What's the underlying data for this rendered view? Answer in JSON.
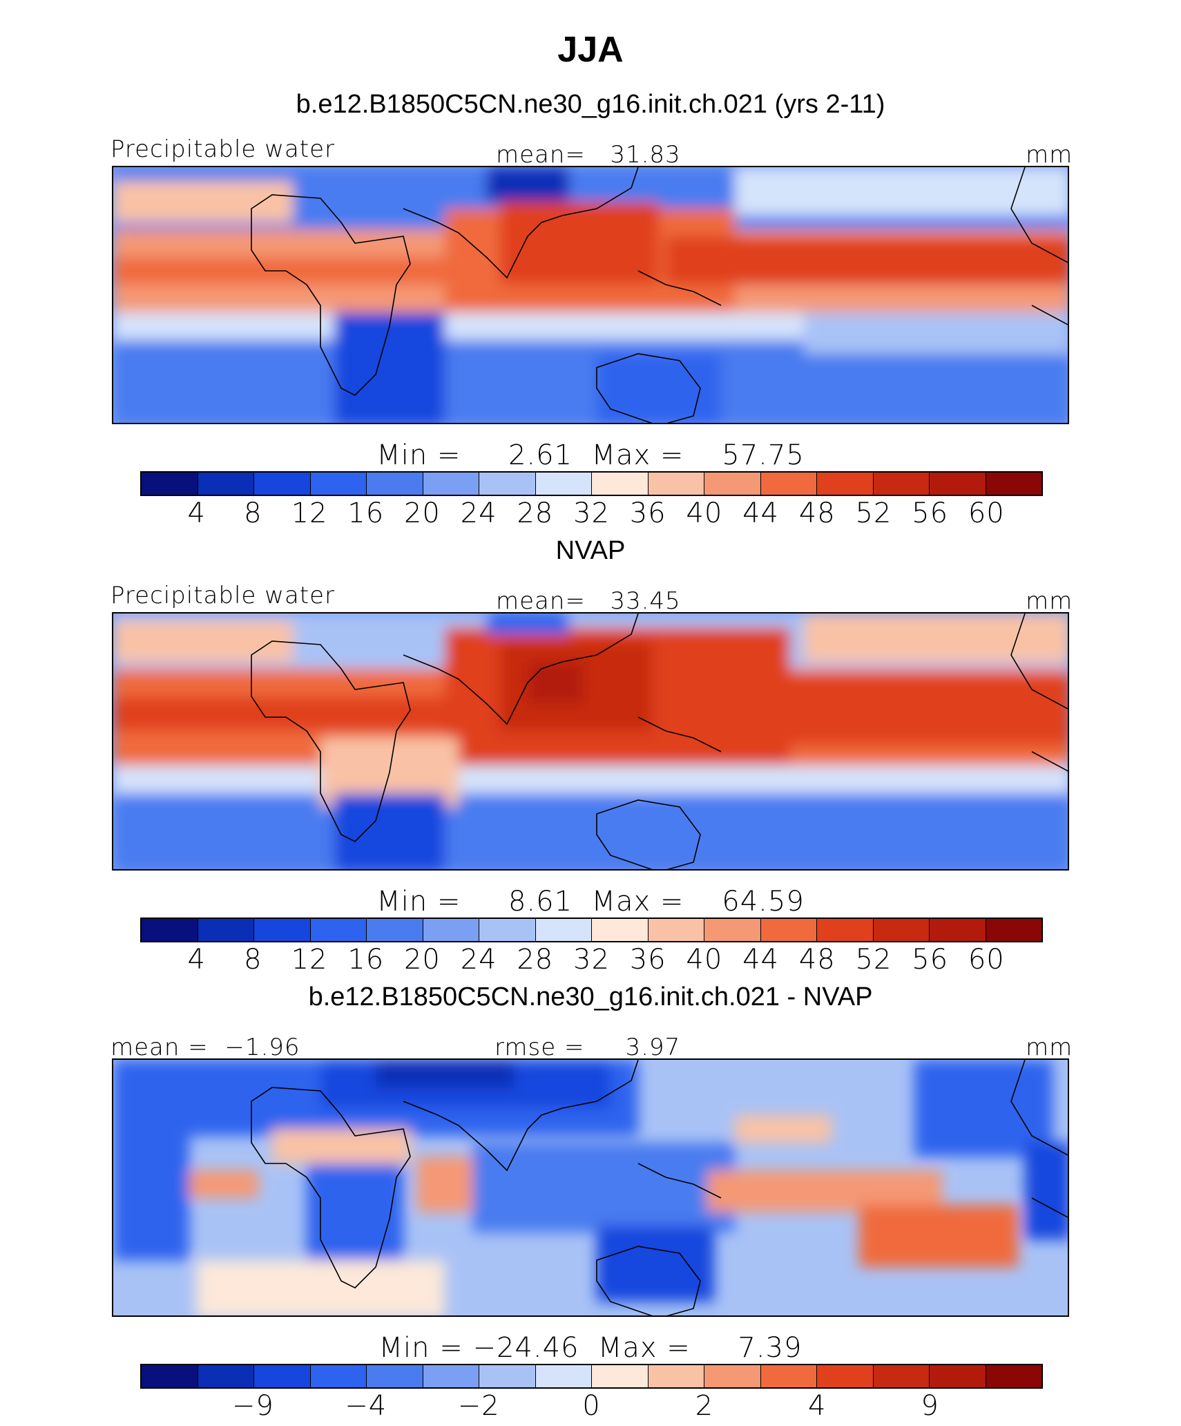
{
  "title": "JJA",
  "palette": [
    "#08107e",
    "#0a2fb6",
    "#1646de",
    "#2d63ee",
    "#4a7cf0",
    "#7b9ff2",
    "#a9c2f6",
    "#d5e3fb",
    "#fde8da",
    "#f9c2a6",
    "#f59874",
    "#f06a3e",
    "#e0401c",
    "#c72a10",
    "#b21a0c",
    "#8a0705"
  ],
  "panels": [
    {
      "title": "b.e12.B1850C5CN.ne30_g16.init.ch.021 (yrs 2-11)",
      "left_label": "Precipitable water",
      "center_label": "mean=   31.83",
      "right_label": "mm",
      "minmax": "Min =     2.61  Max =    57.75",
      "colorbar_ticks": [
        "4",
        "8",
        "12",
        "16",
        "20",
        "24",
        "28",
        "32",
        "36",
        "40",
        "44",
        "48",
        "52",
        "56",
        "60"
      ]
    },
    {
      "title": "NVAP",
      "left_label": "Precipitable water",
      "center_label": "mean=   33.45",
      "right_label": "mm",
      "minmax": "Min =     8.61  Max =    64.59",
      "colorbar_ticks": [
        "4",
        "8",
        "12",
        "16",
        "20",
        "24",
        "28",
        "32",
        "36",
        "40",
        "44",
        "48",
        "52",
        "56",
        "60"
      ]
    },
    {
      "title": "b.e12.B1850C5CN.ne30_g16.init.ch.021 - NVAP",
      "left_label": "mean =  −1.96",
      "center_label": "rmse =     3.97",
      "right_label": "mm",
      "minmax": "Min = −24.46  Max =     7.39",
      "colorbar_ticks": [
        "−9",
        "−4",
        "−2",
        "0",
        "2",
        "4",
        "9"
      ]
    }
  ],
  "chart_data": [
    {
      "type": "heatmap",
      "title": "b.e12.B1850C5CN.ne30_g16.init.ch.021 (yrs 2-11)",
      "variable": "Precipitable water",
      "units": "mm",
      "mean": 31.83,
      "min": 2.61,
      "max": 57.75,
      "contour_levels": [
        4,
        8,
        12,
        16,
        20,
        24,
        28,
        32,
        36,
        40,
        44,
        48,
        52,
        56,
        60
      ],
      "map": "global tropics/subtropics, lon 0–360, coastlines",
      "pattern": "moist band near equator with Asian monsoon maximum; dry subtropics"
    },
    {
      "type": "heatmap",
      "title": "NVAP",
      "variable": "Precipitable water",
      "units": "mm",
      "mean": 33.45,
      "min": 8.61,
      "max": 64.59,
      "contour_levels": [
        4,
        8,
        12,
        16,
        20,
        24,
        28,
        32,
        36,
        40,
        44,
        48,
        52,
        56,
        60
      ],
      "map": "global tropics/subtropics, lon 0–360, coastlines",
      "pattern": "moist band near equator with Asian monsoon maximum; dry subtropics"
    },
    {
      "type": "heatmap",
      "title": "b.e12.B1850C5CN.ne30_g16.init.ch.021 - NVAP",
      "units": "mm",
      "mean": -1.96,
      "rmse": 3.97,
      "min": -24.46,
      "max": 7.39,
      "contour_levels": [
        -9,
        -4,
        -2,
        0,
        2,
        4,
        9
      ],
      "map": "global tropics/subtropics, lon 0–360, coastlines",
      "pattern": "mostly negative (dry bias) with positive bias in east Pacific and parts of Africa"
    }
  ]
}
